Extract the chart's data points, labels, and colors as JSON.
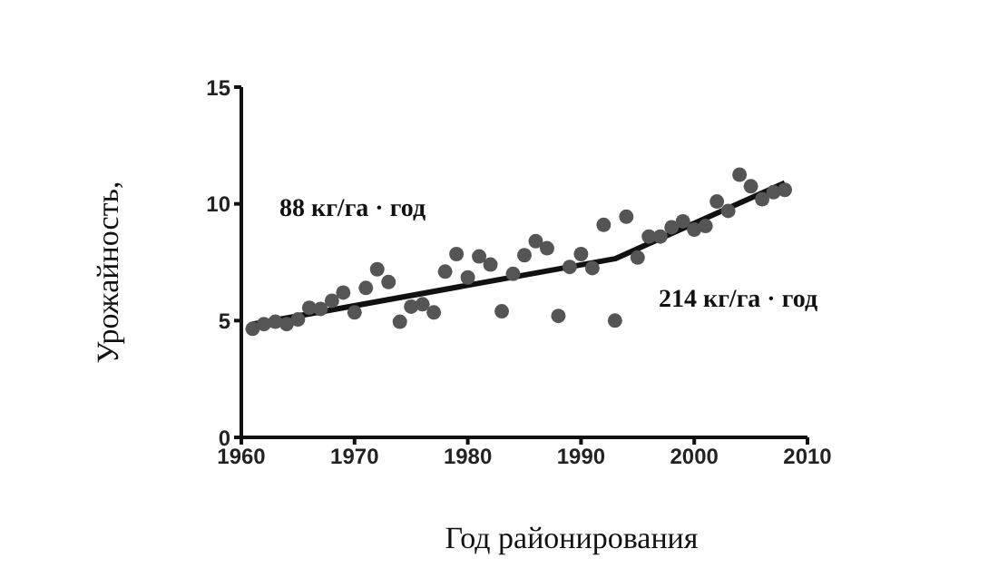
{
  "chart_data": {
    "type": "scatter",
    "xlabel": "Год районирования",
    "ylabel": "Урожайность,",
    "xlim": [
      1960,
      2010
    ],
    "xticks": [
      1960,
      1970,
      1980,
      1990,
      2000,
      2010
    ],
    "ylim": [
      0,
      15
    ],
    "yticks": [
      0,
      5,
      10,
      15
    ],
    "marker": "circle",
    "series": [
      {
        "color": "#555555",
        "x": [
          1961,
          1962,
          1963,
          1964,
          1965,
          1966,
          1967,
          1968,
          1969,
          1970,
          1971,
          1972,
          1973,
          1974,
          1975,
          1976,
          1977,
          1978,
          1979,
          1980,
          1981,
          1982,
          1983,
          1984,
          1985,
          1986,
          1987,
          1988,
          1989,
          1990,
          1991,
          1992,
          1993,
          1994,
          1995,
          1996,
          1997,
          1998,
          1999,
          2000,
          2001,
          2002,
          2003,
          2004,
          2005,
          2006,
          2007,
          2008
        ],
        "values": [
          4.65,
          4.85,
          4.95,
          4.85,
          5.05,
          5.55,
          5.5,
          5.85,
          6.2,
          5.35,
          6.4,
          7.2,
          6.65,
          4.95,
          5.6,
          5.7,
          5.35,
          7.1,
          7.85,
          6.85,
          7.75,
          7.4,
          5.4,
          7.0,
          7.8,
          8.4,
          8.1,
          5.2,
          7.3,
          7.85,
          7.25,
          9.1,
          5.0,
          9.45,
          7.7,
          8.6,
          8.6,
          9.0,
          9.25,
          8.9,
          9.05,
          10.1,
          9.7,
          11.25,
          10.75,
          10.2,
          10.5,
          10.6
        ]
      },
      {
        "type": "line",
        "color": "#111111",
        "marker": "none",
        "line_style": "solid",
        "x": [
          1961,
          1993,
          2008
        ],
        "values": [
          4.85,
          7.65,
          10.9
        ]
      }
    ],
    "annotations": [
      "88 кг/га · год",
      "214 кг/га · год"
    ]
  }
}
